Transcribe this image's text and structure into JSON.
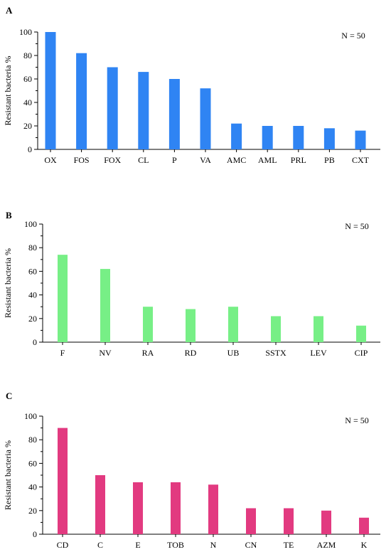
{
  "colors": {
    "A": "#2f84f3",
    "B": "#77ef86",
    "C": "#e23a80"
  },
  "chart_data": [
    {
      "panel": "A",
      "type": "bar",
      "ylabel": "Resistant bacteria %",
      "annotation": "N = 50",
      "ylim": [
        0,
        100
      ],
      "yticks": [
        "0",
        "20",
        "40",
        "60",
        "80",
        "100"
      ],
      "categories": [
        "OX",
        "FOS",
        "FOX",
        "CL",
        "P",
        "VA",
        "AMC",
        "AML",
        "PRL",
        "PB",
        "CXT"
      ],
      "values": [
        100,
        82,
        70,
        66,
        60,
        52,
        22,
        20,
        20,
        18,
        16
      ]
    },
    {
      "panel": "B",
      "type": "bar",
      "ylabel": "Resistant bacteria %",
      "annotation": "N = 50",
      "ylim": [
        0,
        100
      ],
      "yticks": [
        "0",
        "20",
        "40",
        "60",
        "80",
        "100"
      ],
      "categories": [
        "F",
        "NV",
        "RA",
        "RD",
        "UB",
        "SSTX",
        "LEV",
        "CIP"
      ],
      "values": [
        74,
        62,
        30,
        28,
        30,
        22,
        22,
        14
      ]
    },
    {
      "panel": "C",
      "type": "bar",
      "ylabel": "Resistant bacteria %",
      "annotation": "N = 50",
      "ylim": [
        0,
        100
      ],
      "yticks": [
        "0",
        "20",
        "40",
        "60",
        "80",
        "100"
      ],
      "categories": [
        "CD",
        "C",
        "E",
        "TOB",
        "N",
        "CN",
        "TE",
        "AZM",
        "K"
      ],
      "values": [
        90,
        50,
        44,
        44,
        42,
        22,
        22,
        20,
        14
      ]
    }
  ]
}
